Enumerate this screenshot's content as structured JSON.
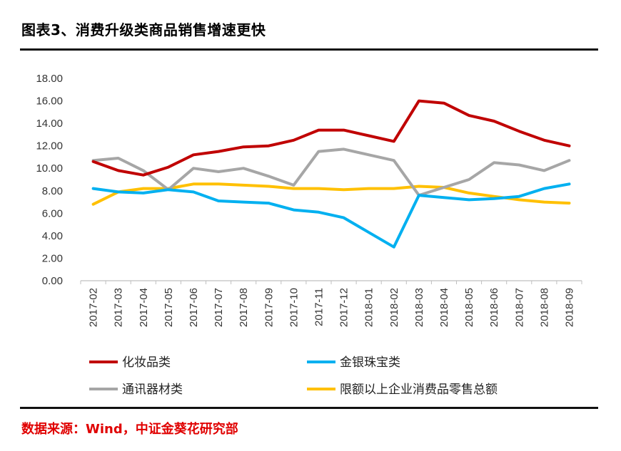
{
  "header": {
    "title": "图表3、消费升级类商品销售增速更快"
  },
  "footer": {
    "source": "数据来源：Wind，中证金葵花研究部"
  },
  "chart_data": {
    "type": "line",
    "title": "图表3、消费升级类商品销售增速更快",
    "xlabel": "",
    "ylabel": "",
    "ylim": [
      0,
      18
    ],
    "yticks": [
      "0.00",
      "2.00",
      "4.00",
      "6.00",
      "8.00",
      "10.00",
      "12.00",
      "14.00",
      "16.00",
      "18.00"
    ],
    "grid": false,
    "legend_position": "bottom",
    "categories": [
      "2017-02",
      "2017-03",
      "2017-04",
      "2017-05",
      "2017-06",
      "2017-07",
      "2017-08",
      "2017-09",
      "2017-10",
      "2017-11",
      "2017-12",
      "2018-01",
      "2018-02",
      "2018-03",
      "2018-04",
      "2018-05",
      "2018-06",
      "2018-07",
      "2018-08",
      "2018-09"
    ],
    "series": [
      {
        "name": "化妆品类",
        "color": "#c00000",
        "values": [
          10.6,
          9.8,
          9.4,
          10.1,
          11.2,
          11.5,
          11.9,
          12.0,
          12.5,
          13.4,
          13.4,
          12.9,
          12.4,
          16.0,
          15.8,
          14.7,
          14.2,
          13.3,
          12.5,
          12.0
        ]
      },
      {
        "name": "金银珠宝类",
        "color": "#00b0f0",
        "values": [
          8.2,
          7.9,
          7.8,
          8.1,
          7.9,
          7.1,
          7.0,
          6.9,
          6.3,
          6.1,
          5.6,
          4.3,
          3.0,
          7.6,
          7.4,
          7.2,
          7.3,
          7.5,
          8.2,
          8.6
        ]
      },
      {
        "name": "通讯器材类",
        "color": "#a6a6a6",
        "values": [
          10.7,
          10.9,
          9.8,
          8.1,
          10.0,
          9.7,
          10.0,
          9.3,
          8.5,
          11.5,
          11.7,
          11.2,
          10.7,
          7.6,
          8.3,
          9.0,
          10.5,
          10.3,
          9.8,
          10.7
        ]
      },
      {
        "name": "限额以上企业消费品零售总额",
        "color": "#ffc000",
        "values": [
          6.8,
          7.9,
          8.2,
          8.2,
          8.6,
          8.6,
          8.5,
          8.4,
          8.2,
          8.2,
          8.1,
          8.2,
          8.2,
          8.4,
          8.3,
          7.8,
          7.5,
          7.2,
          7.0,
          6.9
        ]
      }
    ]
  }
}
